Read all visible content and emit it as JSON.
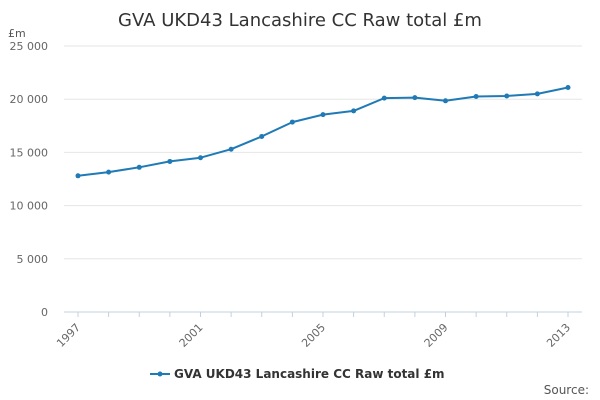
{
  "chart_data": {
    "type": "line",
    "title": "GVA UKD43 Lancashire CC Raw total £m",
    "unit_label": "£m",
    "xlabel": "",
    "ylabel": "",
    "ylim": [
      0,
      25000
    ],
    "y_ticks": [
      0,
      5000,
      10000,
      15000,
      20000,
      25000
    ],
    "y_tick_labels": [
      "0",
      "5 000",
      "10 000",
      "15 000",
      "20 000",
      "25 000"
    ],
    "x_range": [
      1997,
      2013
    ],
    "x_tick_labels": [
      "1997",
      "2001",
      "2005",
      "2009",
      "2013"
    ],
    "x": [
      1997,
      1998,
      1999,
      2000,
      2001,
      2002,
      2003,
      2004,
      2005,
      2006,
      2007,
      2008,
      2009,
      2010,
      2011,
      2012,
      2013
    ],
    "series": [
      {
        "name": "GVA UKD43 Lancashire CC Raw total £m",
        "color": "#1f7ab6",
        "values": [
          12800,
          13150,
          13600,
          14150,
          14500,
          15300,
          16500,
          17850,
          18550,
          18900,
          20100,
          20150,
          19850,
          20250,
          20300,
          20500,
          21100
        ]
      }
    ],
    "grid": true,
    "legend_position": "bottom-center"
  },
  "source_label": "Source:"
}
